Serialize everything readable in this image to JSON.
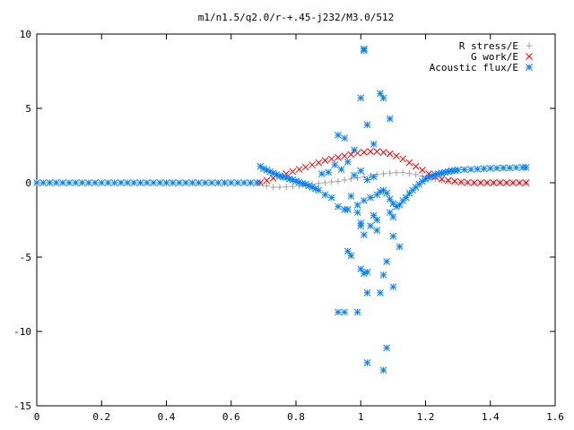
{
  "chart_data": {
    "type": "scatter",
    "title": "m1/n1.5/q2.0/r-+.45-j232/M3.0/512",
    "xlabel": "",
    "ylabel": "",
    "xlim": [
      0,
      1.6
    ],
    "ylim": [
      -15,
      10
    ],
    "x_ticks": [
      0,
      0.2,
      0.4,
      0.6,
      0.8,
      1,
      1.2,
      1.4,
      1.6
    ],
    "x_tick_labels": [
      "0",
      "0.2",
      "0.4",
      "0.6",
      "0.8",
      "1",
      "1.2",
      "1.4",
      "1.6"
    ],
    "y_ticks": [
      -15,
      -10,
      -5,
      0,
      5,
      10
    ],
    "y_tick_labels": [
      "-15",
      "-10",
      "-5",
      "0",
      "5",
      "10"
    ],
    "grid": false,
    "legend_position": "top-right",
    "series": [
      {
        "name": "R stress/E",
        "marker": "plus",
        "color": "#a0a0a0",
        "x": [
          0.69,
          0.71,
          0.73,
          0.75,
          0.77,
          0.79,
          0.81,
          0.83,
          0.85,
          0.87,
          0.89,
          0.91,
          0.93,
          0.95,
          0.97,
          0.99,
          1.01,
          1.03,
          1.05,
          1.07,
          1.09,
          1.11,
          1.13,
          1.15,
          1.17,
          1.19,
          1.21,
          1.23,
          1.25,
          1.27,
          1.29,
          1.31,
          1.33,
          1.35,
          1.37,
          1.39,
          1.41,
          1.43,
          1.45,
          1.47,
          1.49,
          1.51
        ],
        "y": [
          0.0,
          -0.2,
          -0.3,
          -0.3,
          -0.28,
          -0.25,
          -0.2,
          -0.15,
          -0.1,
          -0.05,
          0.0,
          0.05,
          0.1,
          0.18,
          0.25,
          0.32,
          0.4,
          0.48,
          0.55,
          0.6,
          0.65,
          0.68,
          0.68,
          0.62,
          0.55,
          0.45,
          0.35,
          0.25,
          0.15,
          0.1,
          0.05,
          0.02,
          0.0,
          0.0,
          0.0,
          0.0,
          0.0,
          0.0,
          0.0,
          0.0,
          0.0,
          0.0
        ]
      },
      {
        "name": "G work/E",
        "marker": "cross",
        "color": "#ff0000",
        "x": [
          0.69,
          0.71,
          0.73,
          0.75,
          0.77,
          0.79,
          0.81,
          0.83,
          0.85,
          0.87,
          0.89,
          0.91,
          0.93,
          0.95,
          0.97,
          0.99,
          1.01,
          1.03,
          1.05,
          1.07,
          1.09,
          1.11,
          1.13,
          1.15,
          1.17,
          1.19,
          1.21,
          1.23,
          1.25,
          1.27,
          1.29,
          1.31,
          1.33,
          1.35,
          1.37,
          1.39,
          1.41,
          1.43,
          1.45,
          1.47,
          1.49,
          1.51
        ],
        "y": [
          0.0,
          0.15,
          0.3,
          0.45,
          0.6,
          0.75,
          0.9,
          1.05,
          1.2,
          1.35,
          1.5,
          1.6,
          1.7,
          1.8,
          1.9,
          2.0,
          2.05,
          2.1,
          2.1,
          2.05,
          1.95,
          1.8,
          1.6,
          1.35,
          1.1,
          0.85,
          0.6,
          0.4,
          0.25,
          0.15,
          0.1,
          0.05,
          0.02,
          0.0,
          0.0,
          0.0,
          0.0,
          0.0,
          0.0,
          0.0,
          0.0,
          0.0
        ]
      },
      {
        "name": "Acoustic flux/E",
        "marker": "star",
        "color": "#0080ff",
        "x": [
          0.0,
          0.02,
          0.04,
          0.06,
          0.08,
          0.1,
          0.12,
          0.14,
          0.16,
          0.18,
          0.2,
          0.22,
          0.24,
          0.26,
          0.28,
          0.3,
          0.32,
          0.34,
          0.36,
          0.38,
          0.4,
          0.42,
          0.44,
          0.46,
          0.48,
          0.5,
          0.52,
          0.54,
          0.56,
          0.58,
          0.6,
          0.62,
          0.64,
          0.66,
          0.68,
          0.69,
          0.7,
          0.71,
          0.72,
          0.73,
          0.74,
          0.75,
          0.76,
          0.77,
          0.78,
          0.79,
          0.8,
          0.81,
          0.82,
          0.83,
          0.84,
          0.85,
          0.86,
          0.87,
          0.88,
          0.89,
          0.9,
          0.91,
          0.92,
          0.93,
          0.94,
          0.95,
          0.96,
          0.97,
          0.98,
          0.99,
          1.0,
          1.01,
          1.02,
          1.03,
          1.04,
          1.05,
          1.06,
          1.07,
          1.08,
          1.09,
          1.1,
          1.11,
          1.12,
          1.13,
          1.14,
          1.15,
          1.16,
          1.17,
          1.18,
          1.19,
          1.2,
          1.21,
          1.22,
          1.23,
          1.24,
          1.25,
          1.26,
          1.27,
          1.28,
          1.29,
          1.3,
          1.32,
          1.34,
          1.36,
          1.38,
          1.4,
          1.42,
          1.44,
          1.46,
          1.48,
          1.5,
          1.51,
          1.01,
          1.01,
          1.06,
          1.07,
          1.0,
          1.02,
          1.09,
          0.93,
          0.95,
          1.04,
          0.98,
          1.0,
          1.03,
          1.05,
          1.1,
          1.12,
          1.08,
          0.96,
          0.97,
          1.0,
          1.1,
          1.01,
          1.02,
          1.06,
          0.99,
          0.95,
          0.93,
          1.02,
          1.08,
          1.07,
          1.09,
          1.04,
          1.05,
          0.96,
          0.99,
          1.0,
          1.01,
          1.1,
          1.02,
          1.07
        ],
        "y": [
          0.0,
          0.0,
          0.0,
          0.0,
          0.0,
          0.0,
          0.0,
          0.0,
          0.0,
          0.0,
          0.0,
          0.0,
          0.0,
          0.0,
          0.0,
          0.0,
          0.0,
          0.0,
          0.0,
          0.0,
          0.0,
          0.0,
          0.0,
          0.0,
          0.0,
          0.0,
          0.0,
          0.0,
          0.0,
          0.0,
          0.0,
          0.0,
          0.0,
          0.0,
          0.0,
          1.1,
          0.95,
          0.85,
          0.75,
          0.65,
          0.55,
          0.45,
          0.4,
          0.35,
          0.25,
          0.2,
          0.1,
          0.05,
          -0.05,
          -0.1,
          -0.2,
          -0.3,
          -0.4,
          -0.5,
          0.6,
          -0.8,
          0.7,
          -1.0,
          1.2,
          -1.6,
          0.9,
          -1.8,
          1.4,
          -0.9,
          0.5,
          -1.5,
          0.8,
          -1.2,
          0.2,
          -1.0,
          0.4,
          -0.8,
          -0.6,
          -0.5,
          -0.7,
          -1.1,
          -1.4,
          -1.6,
          -1.5,
          -1.2,
          -1.0,
          -0.7,
          -0.5,
          -0.3,
          -0.1,
          0.1,
          0.25,
          0.35,
          0.45,
          0.55,
          0.6,
          0.65,
          0.7,
          0.75,
          0.8,
          0.82,
          0.85,
          0.88,
          0.9,
          0.92,
          0.95,
          0.97,
          0.98,
          1.0,
          1.0,
          1.02,
          1.03,
          1.03,
          9.0,
          8.9,
          6.0,
          5.7,
          5.7,
          3.9,
          4.3,
          3.2,
          3.0,
          2.6,
          2.2,
          -2.7,
          -2.9,
          -3.2,
          -3.6,
          -4.3,
          -5.3,
          -4.6,
          -4.9,
          -5.8,
          -7.0,
          -6.1,
          -7.4,
          -7.4,
          -8.7,
          -8.7,
          -8.7,
          -12.1,
          -11.1,
          -12.6,
          -2.0,
          -2.2,
          -2.5,
          -1.8,
          -2.0,
          -2.9,
          -3.5,
          -2.3,
          -6.0,
          -6.2
        ]
      }
    ]
  }
}
